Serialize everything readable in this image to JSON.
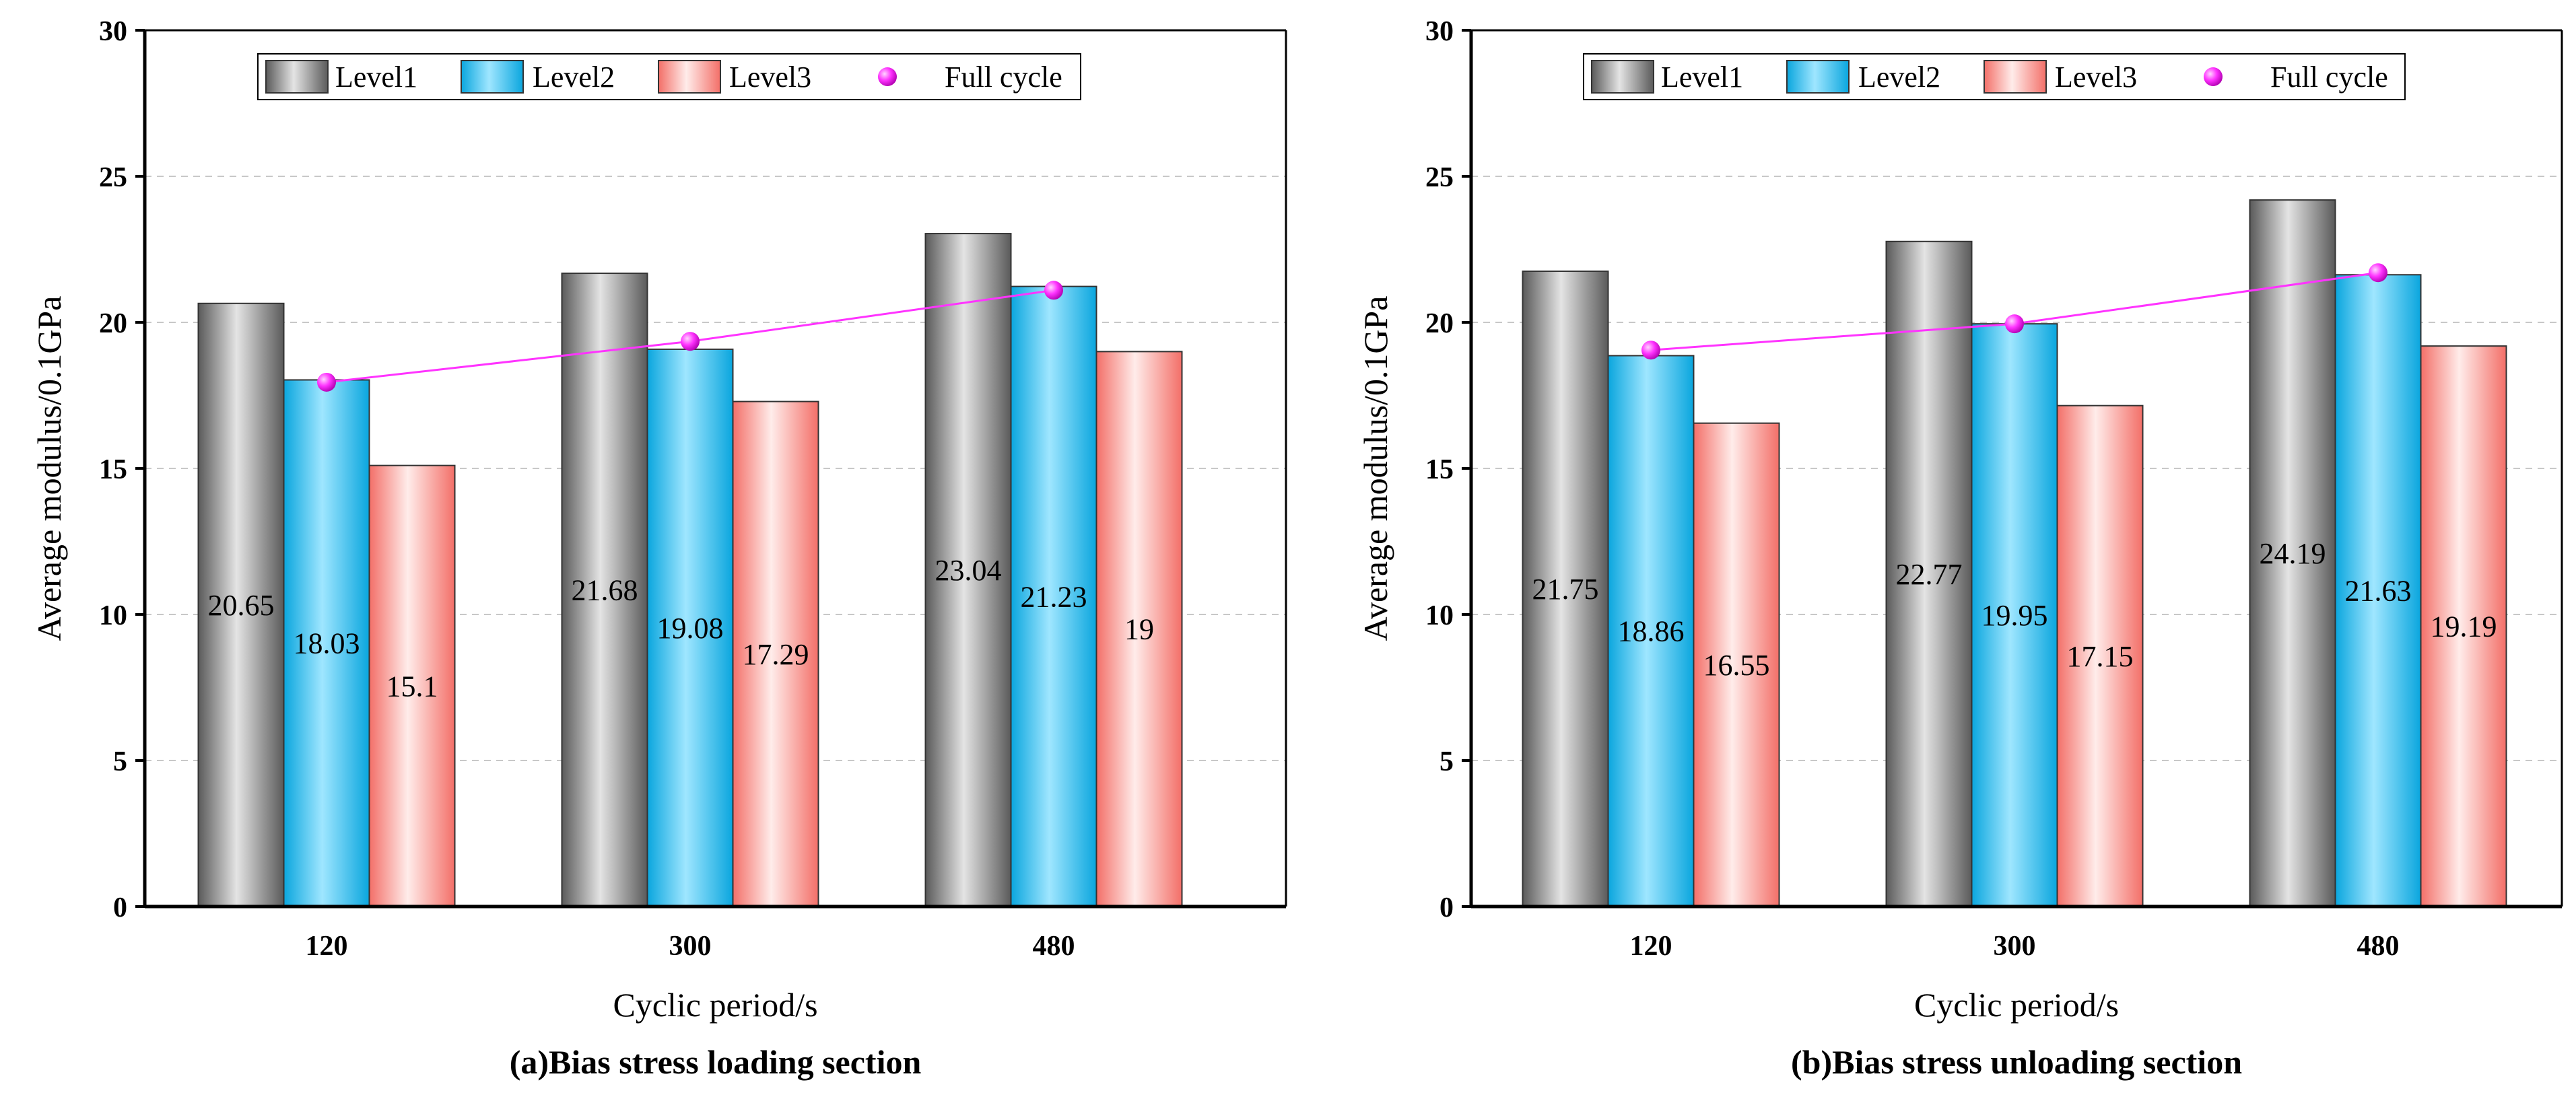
{
  "colors": {
    "level1": "#7f7f7f",
    "level2": "#19b9ec",
    "level3": "#f58e88",
    "full_cycle": "#ff33ff",
    "grid": "#c8c8c8"
  },
  "chart_data": [
    {
      "type": "bar",
      "title": "(a)Bias stress loading section",
      "xlabel": "Cyclic period/s",
      "ylabel": "Average modulus/0.1GPa",
      "ylim": [
        0,
        30
      ],
      "yticks": [
        "0",
        "5",
        "10",
        "15",
        "20",
        "25",
        "30"
      ],
      "categories": [
        "120",
        "300",
        "480"
      ],
      "grid": true,
      "legend_position": "top",
      "series": [
        {
          "name": "Level1",
          "kind": "bar",
          "values": [
            20.65,
            21.68,
            23.04
          ],
          "labels": [
            "20.65",
            "21.68",
            "23.04"
          ]
        },
        {
          "name": "Level2",
          "kind": "bar",
          "values": [
            18.03,
            19.08,
            21.23
          ],
          "labels": [
            "18.03",
            "19.08",
            "21.23"
          ]
        },
        {
          "name": "Level3",
          "kind": "bar",
          "values": [
            15.1,
            17.29,
            19
          ],
          "labels": [
            "15.1",
            "17.29",
            "19"
          ]
        },
        {
          "name": "Full cycle",
          "kind": "line",
          "values": [
            17.95,
            19.35,
            21.1
          ]
        }
      ]
    },
    {
      "type": "bar",
      "title": "(b)Bias stress unloading section",
      "xlabel": "Cyclic period/s",
      "ylabel": "Average modulus/0.1GPa",
      "ylim": [
        0,
        30
      ],
      "yticks": [
        "0",
        "5",
        "10",
        "15",
        "20",
        "25",
        "30"
      ],
      "categories": [
        "120",
        "300",
        "480"
      ],
      "grid": true,
      "legend_position": "top",
      "series": [
        {
          "name": "Level1",
          "kind": "bar",
          "values": [
            21.75,
            22.77,
            24.19
          ],
          "labels": [
            "21.75",
            "22.77",
            "24.19"
          ]
        },
        {
          "name": "Level2",
          "kind": "bar",
          "values": [
            18.86,
            19.95,
            21.63
          ],
          "labels": [
            "18.86",
            "19.95",
            "21.63"
          ]
        },
        {
          "name": "Level3",
          "kind": "bar",
          "values": [
            16.55,
            17.15,
            19.19
          ],
          "labels": [
            "16.55",
            "17.15",
            "19.19"
          ]
        },
        {
          "name": "Full cycle",
          "kind": "line",
          "values": [
            19.05,
            19.95,
            21.7
          ]
        }
      ]
    }
  ]
}
